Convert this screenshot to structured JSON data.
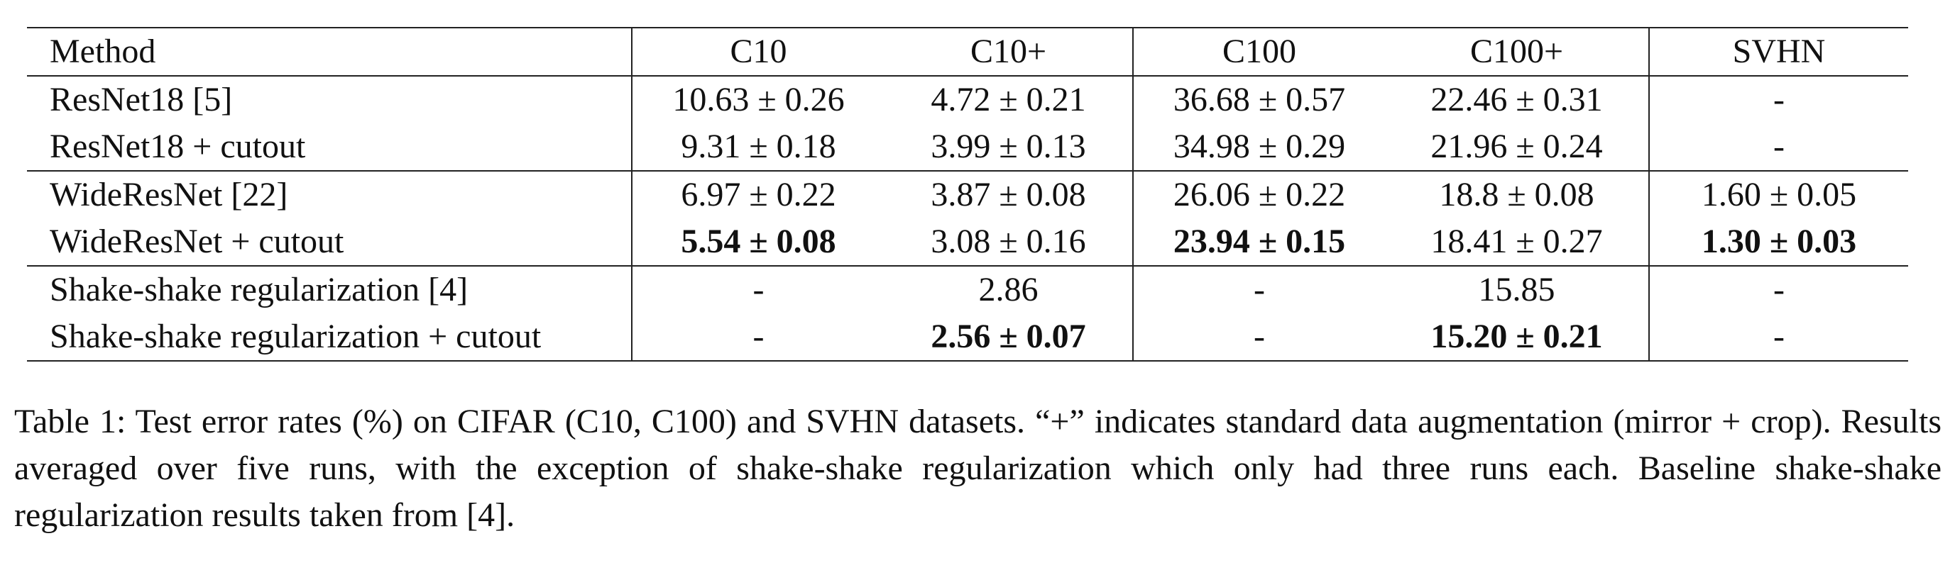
{
  "table": {
    "headers": [
      "Method",
      "C10",
      "C10+",
      "C100",
      "C100+",
      "SVHN"
    ],
    "rows": [
      {
        "method": "ResNet18 [5]",
        "values": [
          "10.63 ± 0.26",
          "4.72 ± 0.21",
          "36.68 ± 0.57",
          "22.46 ± 0.31",
          "-"
        ]
      },
      {
        "method": "ResNet18 + cutout",
        "values": [
          "9.31 ± 0.18",
          "3.99 ± 0.13",
          "34.98 ± 0.29",
          "21.96 ± 0.24",
          "-"
        ]
      },
      {
        "method": "WideResNet [22]",
        "values": [
          "6.97 ± 0.22",
          "3.87 ± 0.08",
          "26.06 ± 0.22",
          "18.8 ± 0.08",
          "1.60 ± 0.05"
        ]
      },
      {
        "method": "WideResNet + cutout",
        "values": [
          "5.54 ± 0.08",
          "3.08 ± 0.16",
          "23.94 ± 0.15",
          "18.41 ± 0.27",
          "1.30 ± 0.03"
        ]
      },
      {
        "method": "Shake-shake regularization [4]",
        "values": [
          "-",
          "2.86",
          "-",
          "15.85",
          "-"
        ]
      },
      {
        "method": "Shake-shake regularization + cutout",
        "values": [
          "-",
          "2.56 ± 0.07",
          "-",
          "15.20 ± 0.21",
          "-"
        ]
      }
    ]
  },
  "caption": "Table 1: Test error rates (%) on CIFAR (C10, C100) and SVHN datasets. “+” indicates standard data augmentation (mirror + crop). Results averaged over five runs, with the exception of shake-shake regularization which only had three runs each. Baseline shake-shake regularization results taken from [4]."
}
